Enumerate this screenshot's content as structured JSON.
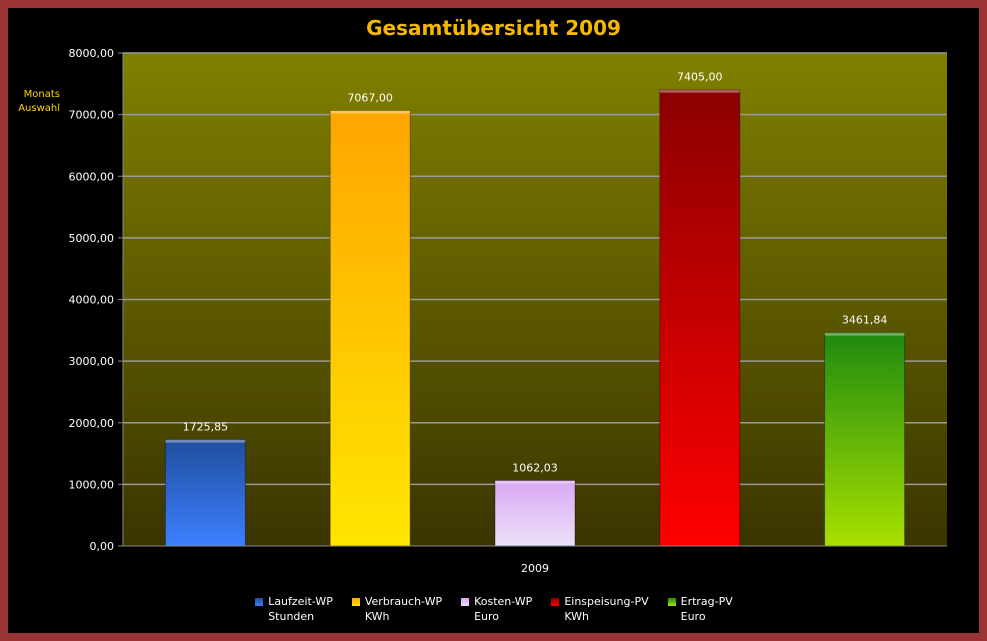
{
  "chart_data": {
    "type": "bar",
    "title": "Gesamtübersicht 2009",
    "ylabel_note": [
      "Monats",
      "Auswahl"
    ],
    "categories": [
      "2009"
    ],
    "ylim": [
      0,
      8000
    ],
    "yticks": [
      0,
      1000,
      2000,
      3000,
      4000,
      5000,
      6000,
      7000,
      8000
    ],
    "ytick_labels": [
      "0,00",
      "1000,00",
      "2000,00",
      "3000,00",
      "4000,00",
      "5000,00",
      "6000,00",
      "7000,00",
      "8000,00"
    ],
    "grid": true,
    "legend_position": "bottom",
    "series": [
      {
        "name": "Laufzeit-WP",
        "unit": "Stunden",
        "values": [
          1725.85
        ],
        "label": "1725,85",
        "color_top": "#1f4e9e",
        "color_bottom": "#3d7fff"
      },
      {
        "name": "Verbrauch-WP",
        "unit": "KWh",
        "values": [
          7067.0
        ],
        "label": "7067,00",
        "color_top": "#ffa500",
        "color_bottom": "#ffe600"
      },
      {
        "name": "Kosten-WP",
        "unit": "Euro",
        "values": [
          1062.03
        ],
        "label": "1062,03",
        "color_top": "#d9a8f5",
        "color_bottom": "#ece0fa"
      },
      {
        "name": "Einspeisung-PV",
        "unit": "KWh",
        "values": [
          7405.0
        ],
        "label": "7405,00",
        "color_top": "#8b0000",
        "color_bottom": "#ff0000"
      },
      {
        "name": "Ertrag-PV",
        "unit": "Euro",
        "values": [
          3461.84
        ],
        "label": "3461,84",
        "color_top": "#1f8a10",
        "color_bottom": "#a8e000"
      }
    ]
  }
}
